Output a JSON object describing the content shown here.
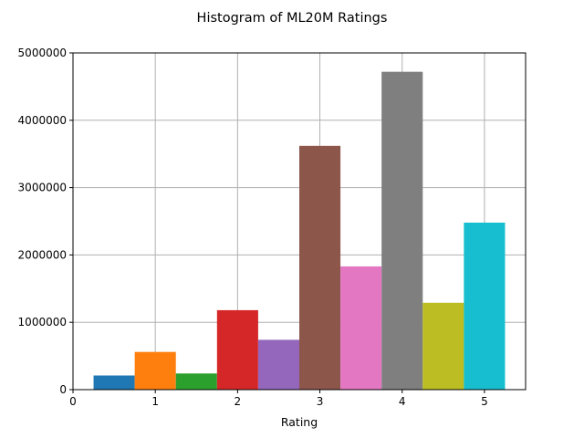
{
  "chart_data": {
    "type": "bar",
    "title": "Histogram of ML20M Ratings",
    "xlabel": "Rating",
    "ylabel": "",
    "xlim": [
      0,
      5.5
    ],
    "ylim": [
      0,
      5000000
    ],
    "x_ticks": [
      0,
      1,
      2,
      3,
      4,
      5
    ],
    "y_ticks": [
      0,
      1000000,
      2000000,
      3000000,
      4000000,
      5000000
    ],
    "grid": true,
    "bin_width": 0.5,
    "series": [
      {
        "x": 0.5,
        "value": 210000,
        "color": "#1f77b4"
      },
      {
        "x": 1.0,
        "value": 560000,
        "color": "#ff7f0e"
      },
      {
        "x": 1.5,
        "value": 240000,
        "color": "#2ca02c"
      },
      {
        "x": 2.0,
        "value": 1180000,
        "color": "#d62728"
      },
      {
        "x": 2.5,
        "value": 740000,
        "color": "#9467bd"
      },
      {
        "x": 3.0,
        "value": 3620000,
        "color": "#8c564b"
      },
      {
        "x": 3.5,
        "value": 1830000,
        "color": "#e377c2"
      },
      {
        "x": 4.0,
        "value": 4720000,
        "color": "#7f7f7f"
      },
      {
        "x": 4.5,
        "value": 1290000,
        "color": "#bcbd22"
      },
      {
        "x": 5.0,
        "value": 2480000,
        "color": "#17becf"
      }
    ]
  }
}
